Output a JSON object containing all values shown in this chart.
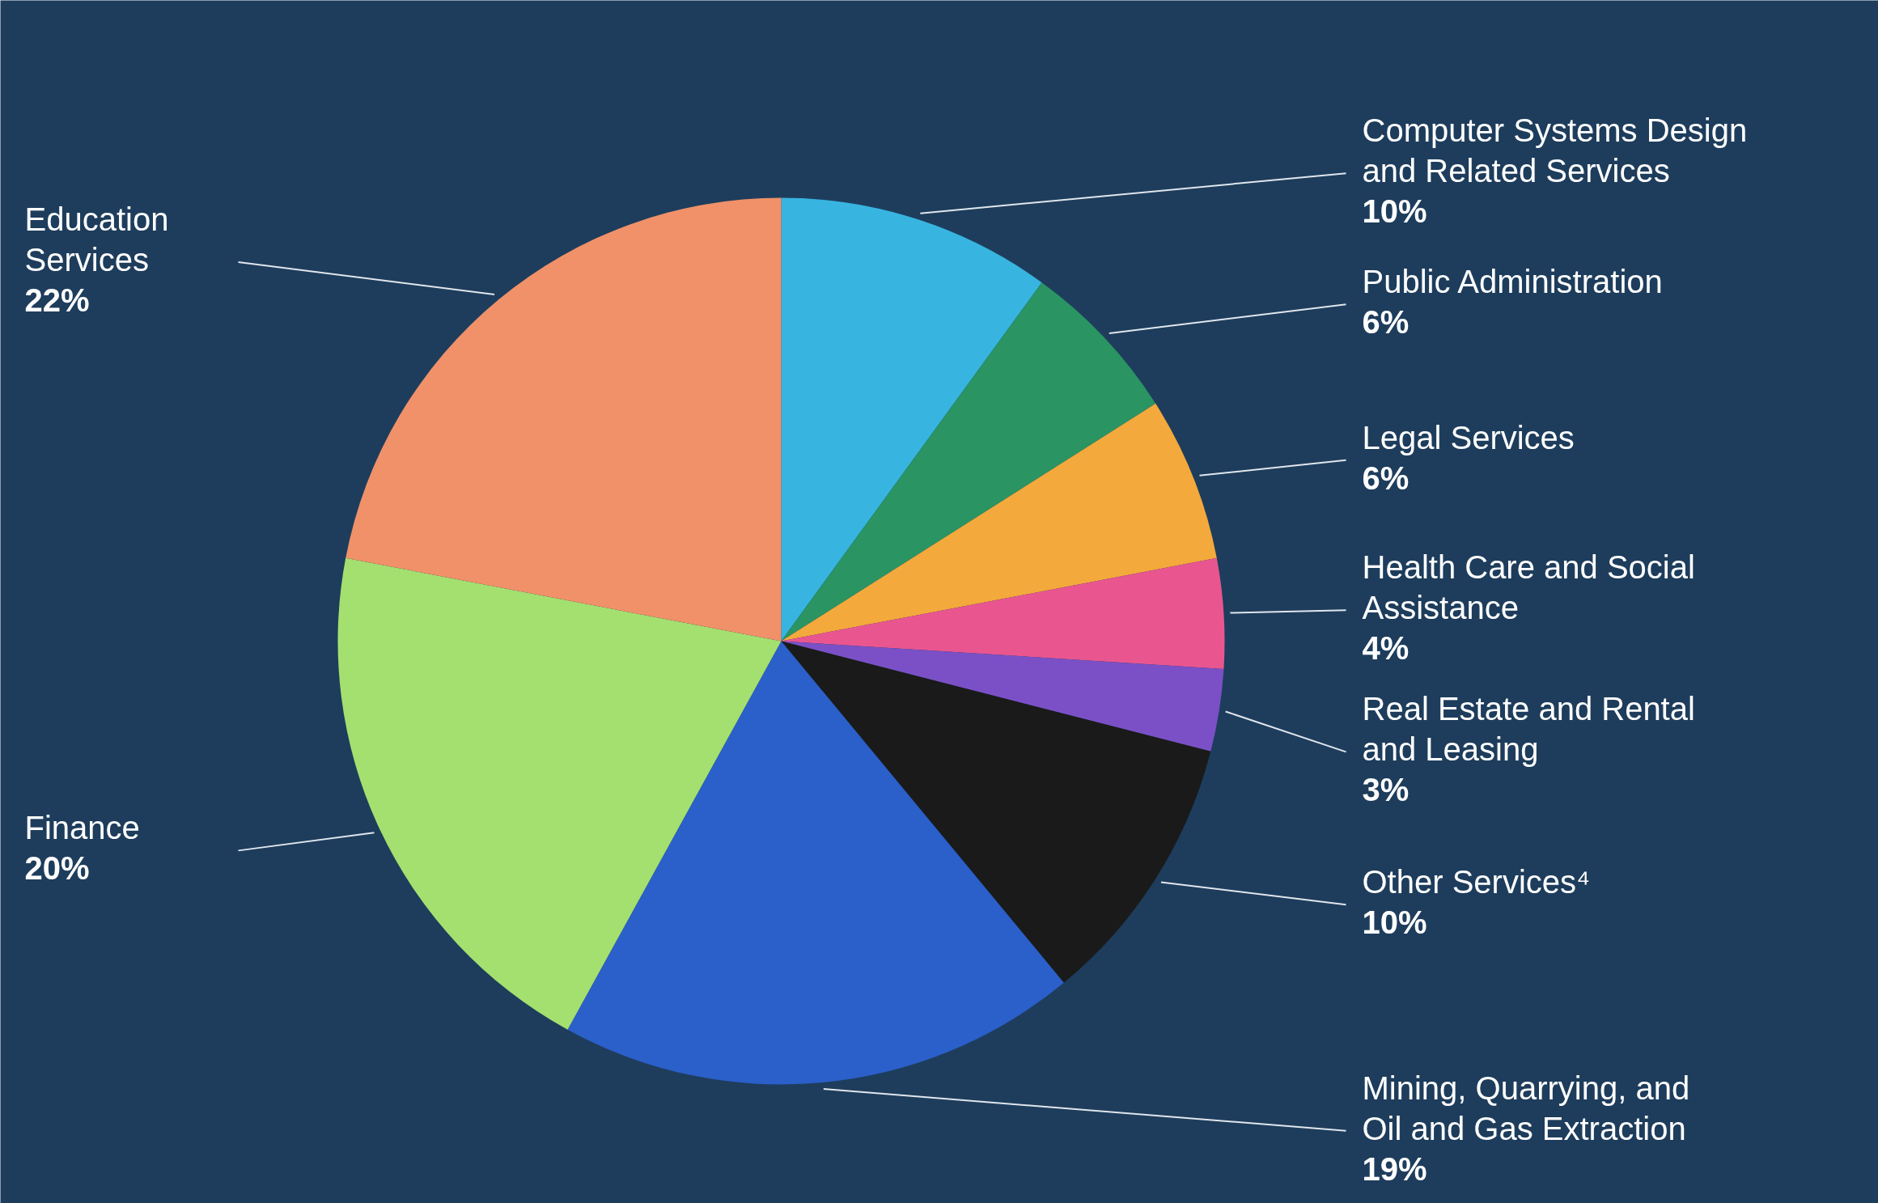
{
  "chart_data": {
    "type": "pie",
    "categories": [
      "Computer Systems Design and Related Services",
      "Public Administration",
      "Legal Services",
      "Health Care and Social Assistance",
      "Real Estate and Rental and Leasing",
      "Other Services⁴",
      "Mining, Quarrying, and Oil and Gas Extraction",
      "Finance",
      "Education Services"
    ],
    "values": [
      10,
      6,
      6,
      4,
      3,
      10,
      19,
      20,
      22
    ],
    "value_labels": [
      "10%",
      "6%",
      "6%",
      "4%",
      "3%",
      "10%",
      "19%",
      "20%",
      "22%"
    ],
    "colors": [
      "#38b4e0",
      "#2a9462",
      "#f4a93c",
      "#e9568f",
      "#7b50c6",
      "#1a1a1a",
      "#2b5fc9",
      "#a4e06f",
      "#f0916a"
    ]
  }
}
